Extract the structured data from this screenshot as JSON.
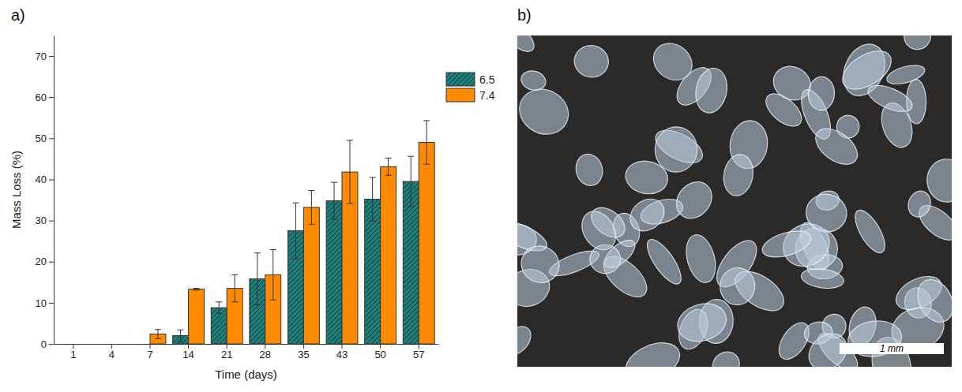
{
  "chart_data": {
    "type": "bar",
    "x_label": "Time (days)",
    "y_label": "Mass Loss (%)",
    "categories": [
      "1",
      "4",
      "7",
      "14",
      "21",
      "28",
      "35",
      "43",
      "50",
      "57"
    ],
    "series": [
      {
        "name": "6.5",
        "color": "#1f7d7b",
        "values": [
          0,
          0,
          0,
          2,
          8.8,
          15.8,
          27.5,
          34.8,
          35.2,
          39.5
        ],
        "errors": [
          0,
          0,
          0,
          1.4,
          1.4,
          6.3,
          6.8,
          4.5,
          5.3,
          6.1
        ]
      },
      {
        "name": "7.4",
        "color": "#ff8a00",
        "values": [
          0,
          0,
          2.4,
          13.3,
          13.5,
          16.8,
          33.2,
          41.8,
          43.1,
          49
        ],
        "errors": [
          0,
          0,
          1.1,
          0.2,
          3.3,
          6.1,
          4.1,
          7.7,
          2.1,
          5.3
        ]
      }
    ],
    "ylim": [
      0,
      75
    ],
    "yticks": [
      0,
      10,
      20,
      30,
      40,
      50,
      60,
      70
    ],
    "grid": false,
    "legend": "right"
  },
  "panel_labels": [
    "a)",
    "b)"
  ],
  "photo": {
    "scale_bar_label": "1 mm"
  }
}
